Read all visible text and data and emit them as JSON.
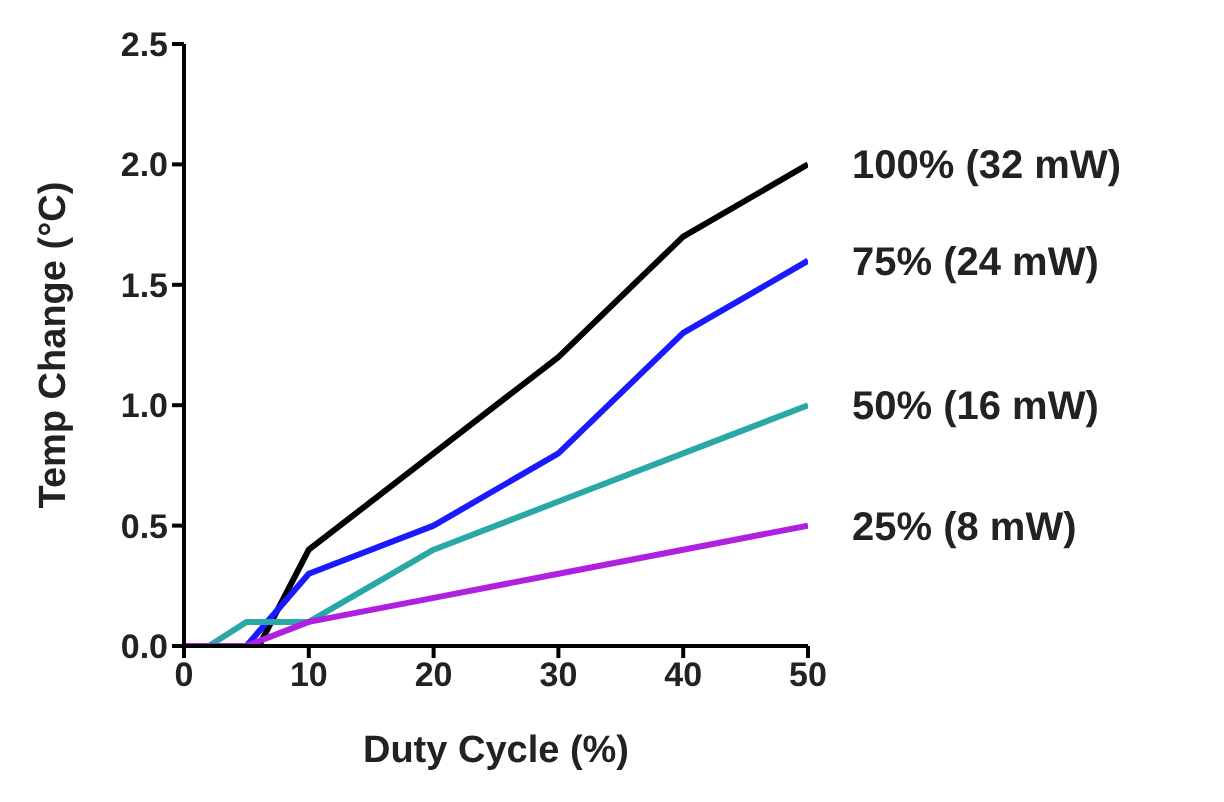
{
  "chart_data": {
    "type": "line",
    "xlabel": "Duty Cycle (%)",
    "ylabel": "Temp Change (°C)",
    "xlim": [
      0,
      50
    ],
    "xticks": [
      0,
      10,
      20,
      30,
      40,
      50
    ],
    "ylim": [
      0,
      2.5
    ],
    "yticks": [
      {
        "value": 0,
        "label": "0.0"
      },
      {
        "value": 0.5,
        "label": "0.5"
      },
      {
        "value": 1,
        "label": "1.0"
      },
      {
        "value": 1.5,
        "label": "1.5"
      },
      {
        "value": 2,
        "label": "2.0"
      },
      {
        "value": 2.5,
        "label": "2.5"
      }
    ],
    "grid": false,
    "legend": false,
    "marker": "none",
    "line_style": "solid",
    "series": [
      {
        "name": "100% (32 mW)",
        "color": "#000000",
        "x": [
          0,
          6,
          10,
          20,
          30,
          40,
          50
        ],
        "values": [
          0,
          0,
          0.4,
          0.8,
          1.2,
          1.7,
          2.0
        ]
      },
      {
        "name": "75% (24 mW)",
        "color": "#1a1aff",
        "x": [
          0,
          5,
          10,
          20,
          30,
          40,
          50
        ],
        "values": [
          0,
          0,
          0.3,
          0.5,
          0.8,
          1.3,
          1.6
        ]
      },
      {
        "name": "50% (16 mW)",
        "color": "#2aa8a8",
        "x": [
          0,
          2,
          5,
          10,
          20,
          30,
          40,
          50
        ],
        "values": [
          0,
          0,
          0.1,
          0.1,
          0.4,
          0.6,
          0.8,
          1.0
        ]
      },
      {
        "name": "25% (8 mW)",
        "color": "#b020e0",
        "x": [
          0,
          5,
          10,
          20,
          30,
          40,
          50
        ],
        "values": [
          0,
          0,
          0.1,
          0.2,
          0.3,
          0.4,
          0.5
        ]
      }
    ]
  }
}
